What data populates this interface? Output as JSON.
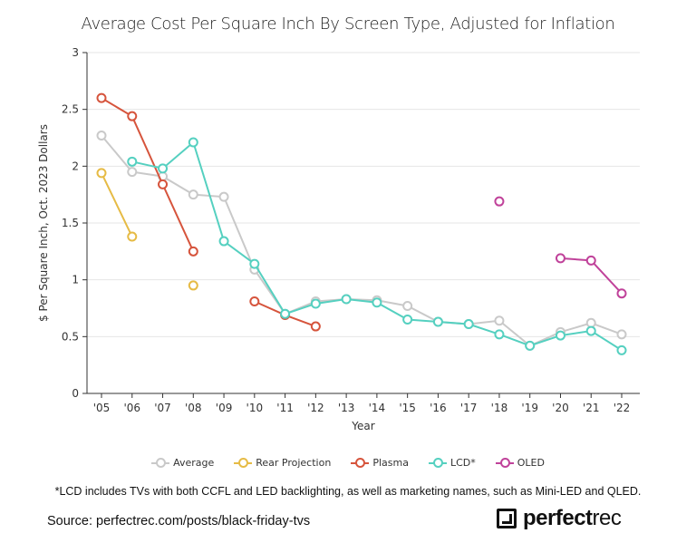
{
  "chart_data": {
    "type": "line",
    "title": "Average Cost Per Square Inch By Screen Type, Adjusted for Inflation",
    "xlabel": "Year",
    "ylabel": "$ Per Square Inch, Oct. 2023 Dollars",
    "ylim": [
      0,
      3
    ],
    "yticks": [
      "0",
      "0.5",
      "1",
      "1.5",
      "2",
      "2.5",
      "3"
    ],
    "categories": [
      "'05",
      "'06",
      "'07",
      "'08",
      "'09",
      "'10",
      "'11",
      "'12",
      "'13",
      "'14",
      "'15",
      "'16",
      "'17",
      "'18",
      "'19",
      "'20",
      "'21",
      "'22"
    ],
    "grid": true,
    "legend_position": "bottom",
    "series": [
      {
        "name": "Average",
        "color": "#c9c9c9",
        "values": [
          2.27,
          1.95,
          1.91,
          1.75,
          1.73,
          1.09,
          0.7,
          0.81,
          0.83,
          0.82,
          0.77,
          0.63,
          0.61,
          0.64,
          0.42,
          0.54,
          0.62,
          0.52
        ]
      },
      {
        "name": "Rear Projection",
        "color": "#e6bb45",
        "values": [
          1.94,
          1.38,
          null,
          0.95,
          null,
          null,
          null,
          null,
          null,
          null,
          null,
          null,
          null,
          null,
          null,
          null,
          null,
          null
        ]
      },
      {
        "name": "Plasma",
        "color": "#d6543c",
        "values": [
          2.6,
          2.44,
          1.84,
          1.25,
          null,
          0.81,
          0.69,
          0.59,
          null,
          null,
          null,
          null,
          null,
          null,
          null,
          null,
          null,
          null
        ]
      },
      {
        "name": "LCD*",
        "color": "#55d0c0",
        "values": [
          null,
          2.04,
          1.98,
          2.21,
          1.34,
          1.14,
          0.7,
          0.79,
          0.83,
          0.8,
          0.65,
          0.63,
          0.61,
          0.52,
          0.42,
          0.51,
          0.55,
          0.38
        ]
      },
      {
        "name": "OLED",
        "color": "#c0429a",
        "values": [
          null,
          null,
          null,
          null,
          null,
          null,
          null,
          null,
          null,
          null,
          null,
          null,
          null,
          1.69,
          null,
          1.19,
          1.17,
          0.88
        ]
      }
    ],
    "annotation": "*LCD includes TVs with both CCFL and LED backlighting, as well as marketing names, such as Mini-LED and QLED."
  },
  "source": "Source: perfectrec.com/posts/black-friday-tvs",
  "logo": {
    "bold": "perfect",
    "light": "rec"
  }
}
